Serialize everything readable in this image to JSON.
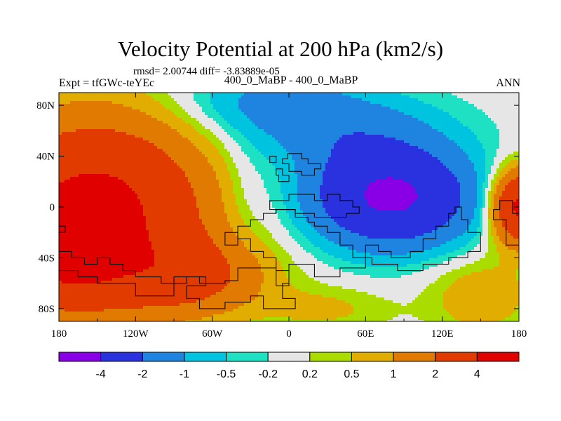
{
  "chart_data": {
    "type": "heatmap",
    "title": "Velocity Potential at 200 hPa (km2/s)",
    "stats_line": "rmsd= 2.00744 diff= -3.83889e-05",
    "left_label": "Expt = tfGWc-teYEc",
    "center_label": "400_0_MaBP - 400_0_MaBP",
    "right_label": "ANN",
    "x_ticks": [
      {
        "value": -180,
        "label": "180"
      },
      {
        "value": -120,
        "label": "120W"
      },
      {
        "value": -60,
        "label": "60W"
      },
      {
        "value": 0,
        "label": "0"
      },
      {
        "value": 60,
        "label": "60E"
      },
      {
        "value": 120,
        "label": "120E"
      },
      {
        "value": 180,
        "label": "180"
      }
    ],
    "y_ticks": [
      {
        "value": 80,
        "label": "80N"
      },
      {
        "value": 40,
        "label": "40N"
      },
      {
        "value": 0,
        "label": "0"
      },
      {
        "value": -40,
        "label": "40S"
      },
      {
        "value": -80,
        "label": "80S"
      }
    ],
    "xlim": [
      -180,
      180
    ],
    "ylim": [
      -90,
      90
    ],
    "contour_levels": [
      "-4",
      "-2",
      "-1",
      "-0.5",
      "-0.2",
      "0.2",
      "0.5",
      "1",
      "2",
      "4"
    ],
    "colorbar_colors": [
      "#8a00e6",
      "#2a32e0",
      "#1e84e0",
      "#00c3e0",
      "#1ee0c3",
      "#e6e6e6",
      "#aadc00",
      "#e1ad00",
      "#e17a00",
      "#e13b00",
      "#e10000"
    ],
    "fields": [
      {
        "name": "positive-west",
        "center": [
          -150,
          0
        ],
        "peak": 4.5
      },
      {
        "name": "negative-east",
        "center": [
          80,
          10
        ],
        "peak": -4.3
      },
      {
        "name": "positive-dateline-east",
        "center": [
          178,
          0
        ],
        "peak": 4.5
      }
    ]
  }
}
